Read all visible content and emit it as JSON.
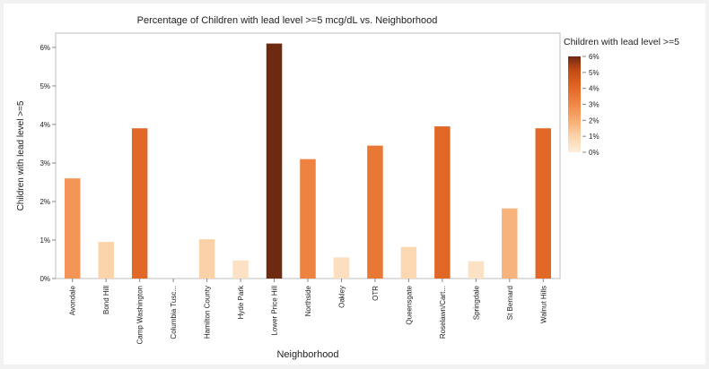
{
  "chart_data": {
    "type": "bar",
    "title": "Percentage of Children with lead level >=5 mcg/dL vs. Neighborhood",
    "xlabel": "Neighborhood",
    "ylabel": "Children with lead level >=5",
    "categories": [
      "Avondale",
      "Bond Hill",
      "Camp Washington",
      "Columbia Tusc...",
      "Hamilton County",
      "Hyde Park",
      "Lower Price Hill",
      "Northside",
      "Oakley",
      "OTR",
      "Queensgate",
      "Roselawn/Cart...",
      "Springdale",
      "St Bernard",
      "Walnut Hills"
    ],
    "values": [
      2.6,
      0.95,
      3.9,
      0.0,
      1.02,
      0.47,
      6.1,
      3.1,
      0.55,
      3.45,
      0.82,
      3.95,
      0.45,
      1.82,
      3.9
    ],
    "ylim": [
      0,
      6.3
    ],
    "yticks": [
      0,
      1,
      2,
      3,
      4,
      5,
      6
    ],
    "ytick_labels": [
      "0%",
      "1%",
      "2%",
      "3%",
      "4%",
      "5%",
      "6%"
    ],
    "grid": false,
    "legend": {
      "title": "Children with lead level >=5",
      "placement": "right",
      "ticks": [
        6,
        5,
        4,
        3,
        2,
        1,
        0
      ],
      "tick_labels": [
        "6%",
        "5%",
        "4%",
        "3%",
        "2%",
        "1%",
        "0%"
      ]
    },
    "color_scale": [
      "#fdeedc",
      "#fbd2a8",
      "#f7aa6f",
      "#ef8443",
      "#df6322",
      "#c04a14",
      "#6e2911"
    ]
  }
}
